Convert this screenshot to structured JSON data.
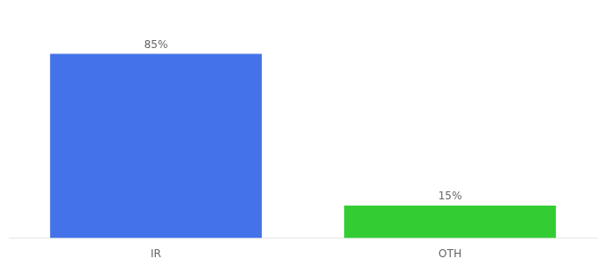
{
  "chart_data": {
    "type": "bar",
    "categories": [
      "IR",
      "OTH"
    ],
    "values": [
      85,
      15
    ],
    "value_labels": [
      "85%",
      "15%"
    ],
    "colors": [
      "#4472e8",
      "#33cc33"
    ],
    "ylim": [
      0,
      100
    ],
    "grid": false,
    "data_labels": true,
    "tick_labels": "x"
  }
}
